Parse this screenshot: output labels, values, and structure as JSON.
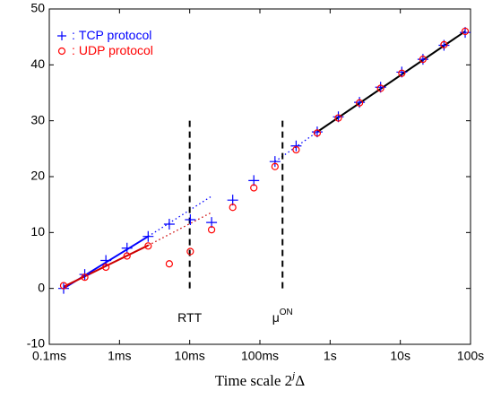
{
  "chart_data": {
    "type": "scatter",
    "xscale": "log",
    "xlim": [
      0.0001,
      100
    ],
    "xticks": [
      {
        "value": 0.0001,
        "label": "0.1ms"
      },
      {
        "value": 0.001,
        "label": "1ms"
      },
      {
        "value": 0.01,
        "label": "10ms"
      },
      {
        "value": 0.1,
        "label": "100ms"
      },
      {
        "value": 1,
        "label": "1s"
      },
      {
        "value": 10,
        "label": "10s"
      },
      {
        "value": 100,
        "label": "100s"
      }
    ],
    "ylim": [
      -10,
      50
    ],
    "yticks": [
      -10,
      0,
      10,
      20,
      30,
      40,
      50
    ],
    "xlabel": {
      "text": "Time scale 2",
      "sup": "j",
      "tail": "Δ"
    },
    "legend_separator": ":",
    "x": [
      0.00016,
      0.00032,
      0.00064,
      0.00128,
      0.00256,
      0.00512,
      0.0102,
      0.0205,
      0.041,
      0.0819,
      0.164,
      0.328,
      0.655,
      1.31,
      2.62,
      5.24,
      10.5,
      21,
      41.9,
      83.9
    ],
    "series": [
      {
        "name": "TCP protocol",
        "color": "#0000ff",
        "marker": "+",
        "values": [
          0,
          2.5,
          5,
          7.2,
          9.3,
          11.5,
          12.3,
          11.8,
          15.8,
          19.3,
          22.7,
          25.5,
          28,
          30.7,
          33.3,
          36,
          38.7,
          41,
          43.5,
          45.8
        ]
      },
      {
        "name": "UDP protocol",
        "color": "#ff0000",
        "marker": "o",
        "values": [
          0.5,
          2,
          3.8,
          5.8,
          7.6,
          4.4,
          6.6,
          10.5,
          14.5,
          18,
          21.8,
          24.8,
          27.8,
          30.5,
          33.2,
          35.8,
          38.5,
          41,
          43.6,
          46
        ]
      }
    ],
    "fits": [
      {
        "color": "#0000ff",
        "style": "solid",
        "x": [
          0.00016,
          0.00256
        ],
        "values": [
          0,
          9.3
        ]
      },
      {
        "color": "#0000ff",
        "style": "dotted",
        "x": [
          0.00256,
          0.0205
        ],
        "values": [
          9.3,
          16.5
        ]
      },
      {
        "color": "#cc0000",
        "style": "solid",
        "x": [
          0.00016,
          0.00256
        ],
        "values": [
          0.3,
          7.7
        ]
      },
      {
        "color": "#cc0000",
        "style": "dotted",
        "x": [
          0.00256,
          0.0205
        ],
        "values": [
          7.7,
          13.6
        ]
      },
      {
        "color": "#0000ff",
        "style": "dotted",
        "x": [
          0.164,
          0.655
        ],
        "values": [
          22.7,
          28
        ]
      },
      {
        "color": "#000000",
        "style": "solid",
        "x": [
          0.655,
          83.9
        ],
        "values": [
          28,
          46
        ]
      }
    ],
    "vlines": [
      {
        "x": 0.01,
        "y": [
          0,
          30
        ],
        "label": "RTT"
      },
      {
        "x": 0.21,
        "y": [
          0,
          30
        ],
        "label": "μ",
        "sup": "ON"
      }
    ]
  }
}
